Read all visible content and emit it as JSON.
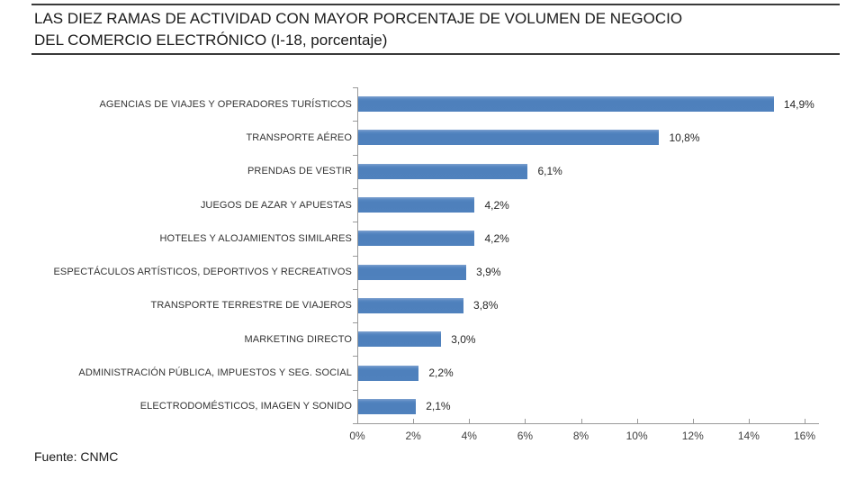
{
  "header": {
    "title_line1": "LAS DIEZ RAMAS DE ACTIVIDAD CON MAYOR PORCENTAJE DE VOLUMEN DE NEGOCIO",
    "title_line2": "DEL COMERCIO ELECTRÓNICO (I-18, porcentaje)"
  },
  "footer": {
    "source": "Fuente: CNMC"
  },
  "chart_data": {
    "type": "bar",
    "orientation": "horizontal",
    "title": "LAS DIEZ RAMAS DE ACTIVIDAD CON MAYOR PORCENTAJE DE VOLUMEN DE NEGOCIO DEL COMERCIO ELECTRÓNICO (I-18, porcentaje)",
    "categories": [
      "AGENCIAS DE VIAJES Y OPERADORES TURÍSTICOS",
      "TRANSPORTE AÉREO",
      "PRENDAS DE VESTIR",
      "JUEGOS DE AZAR Y APUESTAS",
      "HOTELES  Y ALOJAMIENTOS SIMILARES",
      "ESPECTÁCULOS ARTÍSTICOS, DEPORTIVOS Y RECREATIVOS",
      "TRANSPORTE TERRESTRE DE VIAJEROS",
      "MARKETING DIRECTO",
      "ADMINISTRACIÓN PÚBLICA, IMPUESTOS Y SEG. SOCIAL",
      "ELECTRODOMÉSTICOS,  IMAGEN Y SONIDO"
    ],
    "values": [
      14.9,
      10.8,
      6.1,
      4.2,
      4.2,
      3.9,
      3.8,
      3.0,
      2.2,
      2.1
    ],
    "value_labels": [
      "14,9%",
      "10,8%",
      "6,1%",
      "4,2%",
      "4,2%",
      "3,9%",
      "3,8%",
      "3,0%",
      "2,2%",
      "2,1%"
    ],
    "xlabel": "",
    "ylabel": "",
    "xlim": [
      0,
      16
    ],
    "x_ticks": [
      "0%",
      "2%",
      "4%",
      "6%",
      "8%",
      "10%",
      "12%",
      "14%",
      "16%"
    ],
    "x_tick_values": [
      0,
      2,
      4,
      6,
      8,
      10,
      12,
      14,
      16
    ],
    "grid": false,
    "legend": false,
    "bar_color": "#4F81BD",
    "axis_color": "#9A9A9A"
  }
}
